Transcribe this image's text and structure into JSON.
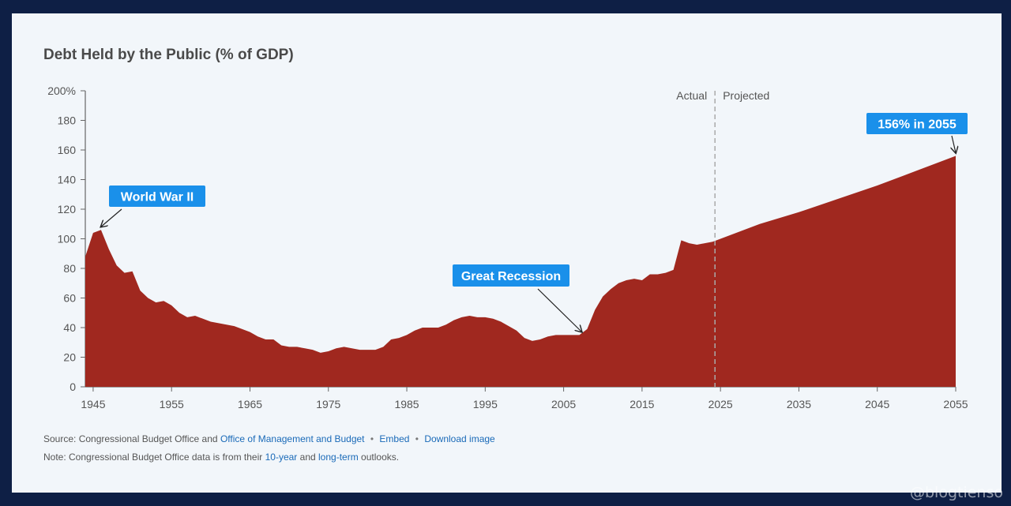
{
  "title": "Debt Held by the Public (% of GDP)",
  "chart_data": {
    "type": "area",
    "title": "Debt Held by the Public (% of GDP)",
    "xlim": [
      1944,
      2055
    ],
    "ylim": [
      0,
      200
    ],
    "x_ticks": [
      1945,
      1955,
      1965,
      1975,
      1985,
      1995,
      2005,
      2015,
      2025,
      2035,
      2045,
      2055
    ],
    "y_ticks": [
      0,
      20,
      40,
      60,
      80,
      100,
      120,
      140,
      160,
      180,
      200
    ],
    "y_tick_labels": [
      "0",
      "20",
      "40",
      "60",
      "80",
      "100",
      "120",
      "140",
      "160",
      "180",
      "200%"
    ],
    "divider_year": 2024.3,
    "region_labels": [
      "Actual",
      "Projected"
    ],
    "color": "#a0281f",
    "x": [
      1944,
      1945,
      1946,
      1947,
      1948,
      1949,
      1950,
      1951,
      1952,
      1953,
      1954,
      1955,
      1956,
      1957,
      1958,
      1959,
      1960,
      1961,
      1962,
      1963,
      1964,
      1965,
      1966,
      1967,
      1968,
      1969,
      1970,
      1971,
      1972,
      1973,
      1974,
      1975,
      1976,
      1977,
      1978,
      1979,
      1980,
      1981,
      1982,
      1983,
      1984,
      1985,
      1986,
      1987,
      1988,
      1989,
      1990,
      1991,
      1992,
      1993,
      1994,
      1995,
      1996,
      1997,
      1998,
      1999,
      2000,
      2001,
      2002,
      2003,
      2004,
      2005,
      2006,
      2007,
      2008,
      2009,
      2010,
      2011,
      2012,
      2013,
      2014,
      2015,
      2016,
      2017,
      2018,
      2019,
      2020,
      2021,
      2022,
      2023,
      2024,
      2025,
      2030,
      2035,
      2040,
      2045,
      2050,
      2055
    ],
    "values": [
      88,
      104,
      106,
      93,
      82,
      77,
      78,
      65,
      60,
      57,
      58,
      55,
      50,
      47,
      48,
      46,
      44,
      43,
      42,
      41,
      39,
      37,
      34,
      32,
      32,
      28,
      27,
      27,
      26,
      25,
      23,
      24,
      26,
      27,
      26,
      25,
      25,
      25,
      27,
      32,
      33,
      35,
      38,
      40,
      40,
      40,
      42,
      45,
      47,
      48,
      47,
      47,
      46,
      44,
      41,
      38,
      33,
      31,
      32,
      34,
      35,
      35,
      35,
      35,
      39,
      52,
      61,
      66,
      70,
      72,
      73,
      72,
      76,
      76,
      77,
      79,
      99,
      97,
      96,
      97,
      98,
      100,
      110,
      118,
      127,
      136,
      146,
      156
    ],
    "annotations": [
      {
        "text": "World War II",
        "x": 1946
      },
      {
        "text": "Great Recession",
        "x": 2007.3
      },
      {
        "text": "156% in 2055",
        "x": 2055
      }
    ]
  },
  "source": {
    "prefix": "Source: Congressional Budget Office and",
    "omb_link": "Office of Management and Budget",
    "embed_link": "Embed",
    "download_link": "Download image"
  },
  "note": {
    "prefix": "Note: Congressional Budget Office data is from their",
    "link1": "10-year",
    "mid": "and",
    "link2": "long-term",
    "suffix": "outlooks."
  },
  "watermark": "@blogtienso"
}
